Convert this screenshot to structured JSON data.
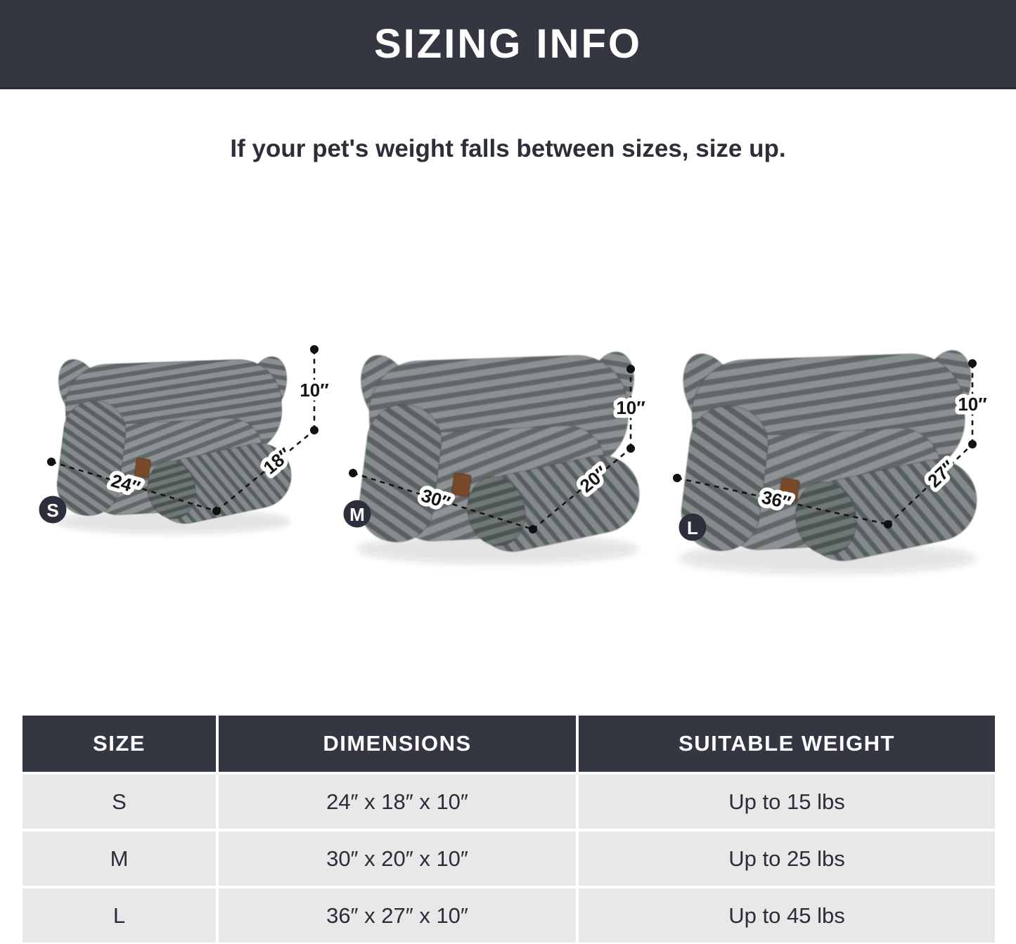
{
  "banner": {
    "title": "SIZING INFO"
  },
  "subtitle": "If your pet's weight falls between sizes, size up.",
  "sizes": [
    {
      "label": "S",
      "width_label": "24″",
      "depth_label": "18″",
      "height_label": "10″"
    },
    {
      "label": "M",
      "width_label": "30″",
      "depth_label": "20″",
      "height_label": "10″"
    },
    {
      "label": "L",
      "width_label": "36″",
      "depth_label": "27″",
      "height_label": "10″"
    }
  ],
  "table": {
    "headers": [
      "SIZE",
      "DIMENSIONS",
      "SUITABLE WEIGHT"
    ],
    "rows": [
      {
        "size": "S",
        "dimensions": "24″ x 18″ x 10″",
        "weight": "Up to 15 lbs"
      },
      {
        "size": "M",
        "dimensions": "30″ x 20″ x 10″",
        "weight": "Up to 25 lbs"
      },
      {
        "size": "L",
        "dimensions": "36″ x 27″ x 10″",
        "weight": "Up to 45 lbs"
      }
    ]
  },
  "colors": {
    "banner_bg": "#343642",
    "table_header_bg": "#343642",
    "table_row_bg": "#e8e8e8",
    "badge_bg": "#2d2f3c",
    "annotation": "#151515",
    "bed_stripe_light": "#8b9192",
    "bed_stripe_dark": "#606667",
    "tag_brown": "#7a4a2b"
  }
}
